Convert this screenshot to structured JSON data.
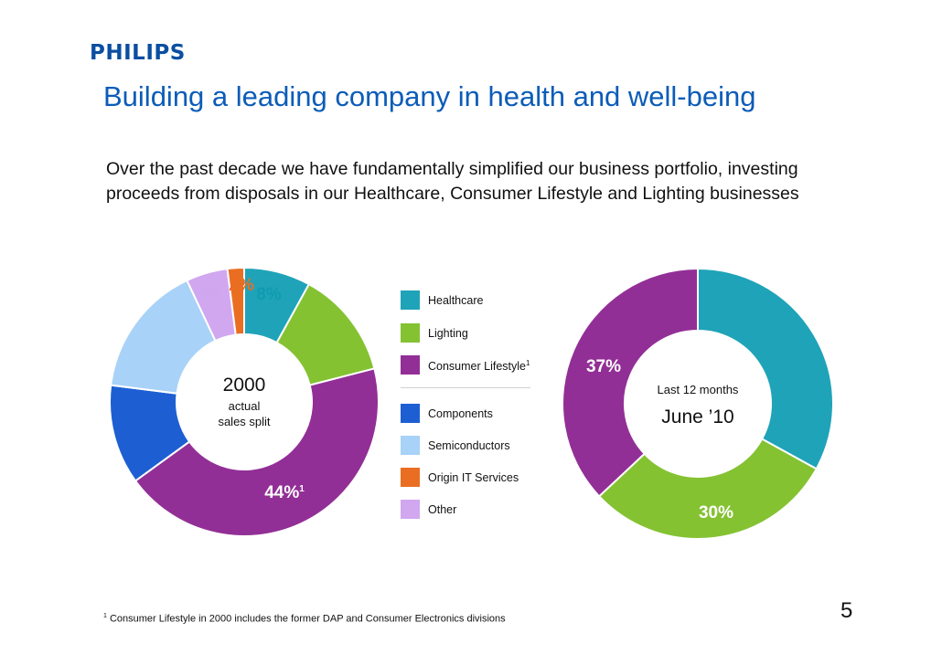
{
  "header": {
    "logo_text": "PHILIPS",
    "title": "Building a leading company in health and well-being"
  },
  "intro_text": "Over the past decade we have fundamentally simplified our business portfolio, investing proceeds from disposals in our Healthcare, Consumer Lifestyle and Lighting businesses",
  "colors": {
    "healthcare": "#1fa3b8",
    "lighting": "#84c232",
    "consumer_lifestyle": "#922f96",
    "components": "#1d5fd3",
    "semiconductors": "#a8d2f7",
    "origin_it": "#ea6e22",
    "other": "#d1a7f0"
  },
  "legend": [
    {
      "key": "healthcare",
      "label": "Healthcare",
      "sup": ""
    },
    {
      "key": "lighting",
      "label": "Lighting",
      "sup": ""
    },
    {
      "key": "consumer_lifestyle",
      "label": "Consumer Lifestyle",
      "sup": "1"
    },
    {
      "key": "components",
      "label": "Components",
      "sup": ""
    },
    {
      "key": "semiconductors",
      "label": "Semiconductors",
      "sup": ""
    },
    {
      "key": "origin_it",
      "label": "Origin IT Services",
      "sup": ""
    },
    {
      "key": "other",
      "label": "Other",
      "sup": ""
    }
  ],
  "chart_data": [
    {
      "type": "pie",
      "donut": true,
      "center_title": "2000",
      "center_subtitle_lines": [
        "actual",
        "sales split"
      ],
      "slices": [
        {
          "key": "healthcare",
          "value": 8,
          "label": "8%"
        },
        {
          "key": "lighting",
          "value": 13,
          "label": "13%"
        },
        {
          "key": "consumer_lifestyle",
          "value": 44,
          "label": "44%",
          "sup": "1"
        },
        {
          "key": "components",
          "value": 12,
          "label": "12%"
        },
        {
          "key": "semiconductors",
          "value": 16,
          "label": "16%"
        },
        {
          "key": "other",
          "value": 5,
          "label": "5%"
        },
        {
          "key": "origin_it",
          "value": 2,
          "label": "2%"
        }
      ]
    },
    {
      "type": "pie",
      "donut": true,
      "center_title": "June ’10",
      "center_subtitle_lines": [
        "Last 12 months"
      ],
      "slices": [
        {
          "key": "healthcare",
          "value": 33,
          "label": "33%"
        },
        {
          "key": "lighting",
          "value": 30,
          "label": "30%"
        },
        {
          "key": "consumer_lifestyle",
          "value": 37,
          "label": "37%"
        }
      ]
    }
  ],
  "footnote": {
    "marker": "1",
    "text": "Consumer Lifestyle in 2000 includes the former DAP and Consumer Electronics divisions"
  },
  "page_number": "5"
}
